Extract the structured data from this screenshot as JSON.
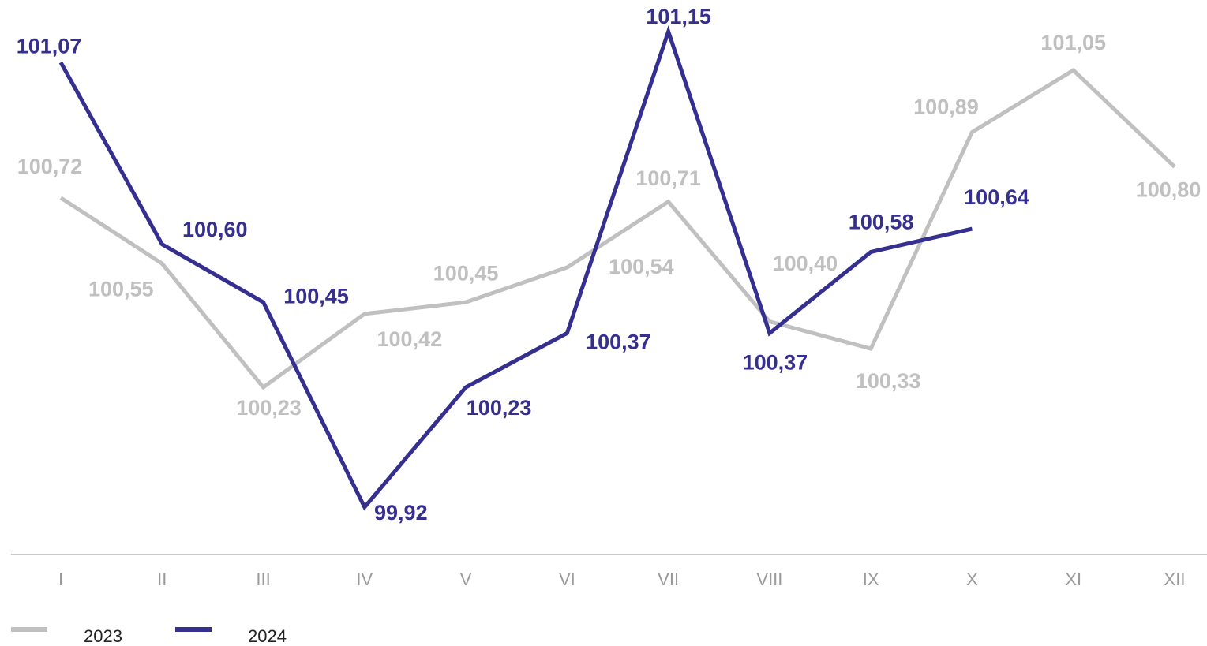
{
  "chart_data": {
    "type": "line",
    "categories": [
      "I",
      "II",
      "III",
      "IV",
      "V",
      "VI",
      "VII",
      "VIII",
      "IX",
      "X",
      "XI",
      "XII"
    ],
    "series": [
      {
        "name": "2023",
        "color": "#c0c0c0",
        "values": [
          100.72,
          100.55,
          100.23,
          100.42,
          100.45,
          100.54,
          100.71,
          100.4,
          100.33,
          100.89,
          101.05,
          100.8
        ],
        "value_labels": [
          "100,72",
          "100,55",
          "100,23",
          "100,42",
          "100,45",
          "100,54",
          "100,71",
          "100,40",
          "100,33",
          "100,89",
          "101,05",
          "100,80"
        ]
      },
      {
        "name": "2024",
        "color": "#352f8f",
        "values": [
          101.07,
          100.6,
          100.45,
          99.92,
          100.23,
          100.37,
          101.15,
          100.37,
          100.58,
          100.64,
          null,
          null
        ],
        "value_labels": [
          "101,07",
          "100,60",
          "100,45",
          "99,92",
          "100,23",
          "100,37",
          "101,15",
          "100,37",
          "100,58",
          "100,64",
          null,
          null
        ]
      }
    ]
  }
}
